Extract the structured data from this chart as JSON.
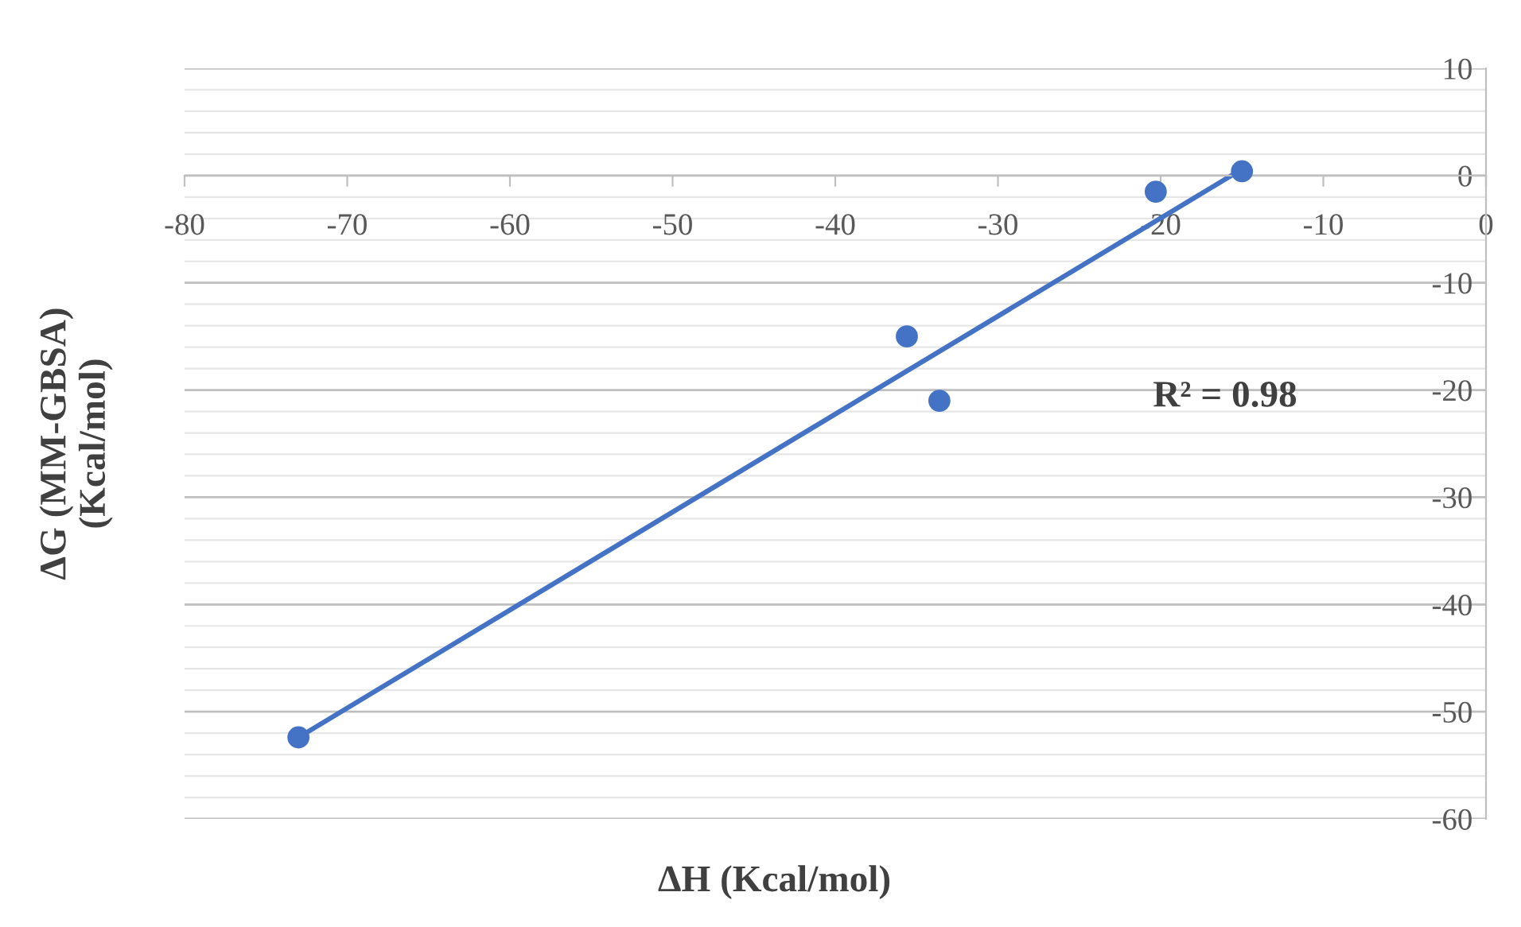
{
  "chart_data": {
    "type": "scatter",
    "xlabel": "ΔH (Kcal/mol)",
    "ylabel": "ΔG (MM-GBSA)\n(Kcal/mol)",
    "x": [
      -73,
      -35.6,
      -33.6,
      -20.3,
      -15
    ],
    "series": [
      {
        "color": "#4472c4",
        "values": [
          -52.4,
          -15.0,
          -21.0,
          -1.5,
          0.4
        ],
        "marker": "circle"
      },
      {
        "type": "line",
        "color": "#4472c4",
        "x": [
          -73,
          -15
        ],
        "values": [
          -52.4,
          0.6
        ],
        "marker": "none"
      }
    ],
    "annotations": [
      "R² = 0.98"
    ],
    "xlim": [
      -80,
      0
    ],
    "xticks": [
      -80,
      -70,
      -60,
      -50,
      -40,
      -30,
      -20,
      -10,
      0
    ],
    "ylim": [
      -60,
      10
    ],
    "yticks": [
      -60,
      -50,
      -40,
      -30,
      -20,
      -10,
      0,
      10
    ],
    "grid": "y"
  }
}
